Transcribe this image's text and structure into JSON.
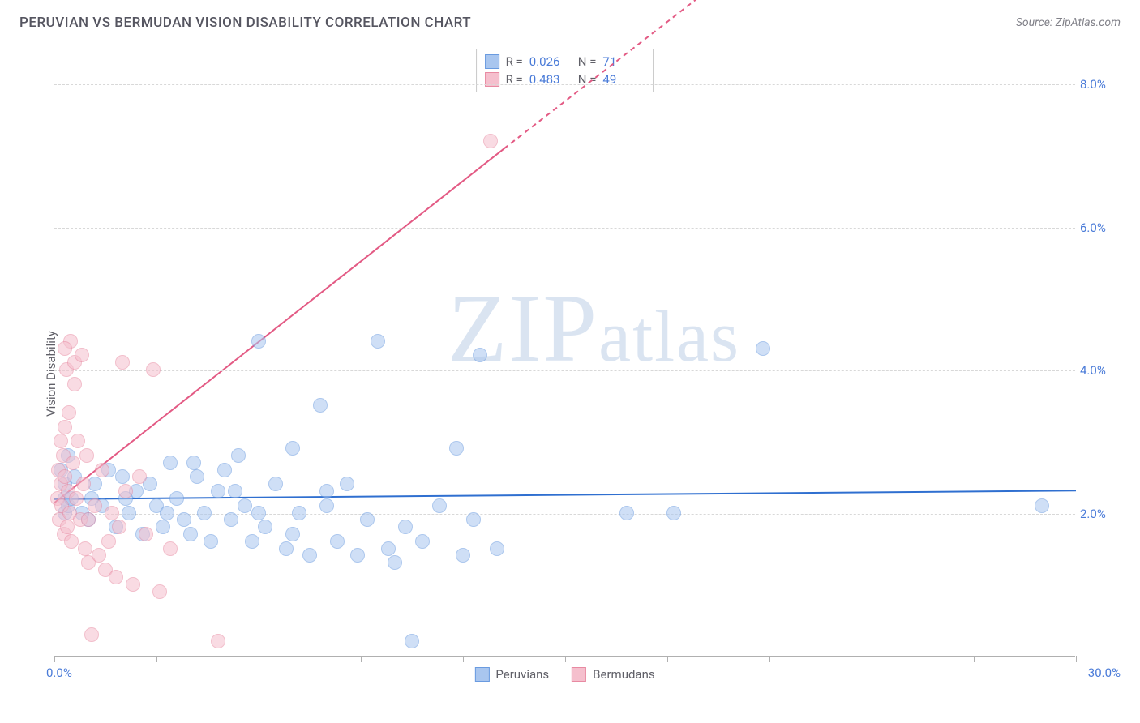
{
  "header": {
    "title": "PERUVIAN VS BERMUDAN VISION DISABILITY CORRELATION CHART",
    "source_prefix": "Source: ",
    "source_name": "ZipAtlas.com"
  },
  "watermark_text": "ZIPatlas",
  "chart": {
    "type": "scatter",
    "y_axis_label": "Vision Disability",
    "background_color": "#ffffff",
    "grid_color": "#d8d8d8",
    "axis_color": "#b0b0b0",
    "tick_label_color": "#4a7bd8",
    "xlim": [
      0,
      30
    ],
    "ylim": [
      0,
      8.5
    ],
    "x_tick_positions": [
      0,
      3,
      6,
      9,
      12,
      15,
      18,
      21,
      24,
      27,
      30
    ],
    "x_min_label": "0.0%",
    "x_max_label": "30.0%",
    "y_gridlines": [
      2.0,
      4.0,
      6.0,
      8.0
    ],
    "y_tick_labels": [
      "2.0%",
      "4.0%",
      "6.0%",
      "8.0%"
    ],
    "point_radius": 9,
    "point_opacity": 0.55,
    "series": [
      {
        "name": "Peruvians",
        "fill_color": "#a9c6ef",
        "stroke_color": "#6a9be0",
        "trend": {
          "x1": 0,
          "y1": 2.2,
          "x2": 30,
          "y2": 2.32,
          "dash": false,
          "color": "#2f6fd0",
          "width": 2
        },
        "R": "0.026",
        "N": "71",
        "points": [
          [
            0.2,
            2.6
          ],
          [
            0.3,
            2.4
          ],
          [
            0.3,
            2.2
          ],
          [
            0.3,
            2.0
          ],
          [
            0.4,
            2.8
          ],
          [
            0.4,
            2.1
          ],
          [
            1.0,
            1.9
          ],
          [
            1.2,
            2.4
          ],
          [
            1.4,
            2.1
          ],
          [
            1.6,
            2.6
          ],
          [
            1.8,
            1.8
          ],
          [
            2.0,
            2.5
          ],
          [
            2.2,
            2.0
          ],
          [
            2.4,
            2.3
          ],
          [
            2.6,
            1.7
          ],
          [
            2.8,
            2.4
          ],
          [
            3.0,
            2.1
          ],
          [
            3.2,
            1.8
          ],
          [
            3.4,
            2.7
          ],
          [
            3.6,
            2.2
          ],
          [
            3.8,
            1.9
          ],
          [
            4.0,
            1.7
          ],
          [
            4.2,
            2.5
          ],
          [
            4.4,
            2.0
          ],
          [
            4.6,
            1.6
          ],
          [
            4.8,
            2.3
          ],
          [
            5.0,
            2.6
          ],
          [
            5.2,
            1.9
          ],
          [
            5.4,
            2.8
          ],
          [
            5.6,
            2.1
          ],
          [
            5.8,
            1.6
          ],
          [
            6.0,
            4.4
          ],
          [
            6.2,
            1.8
          ],
          [
            6.5,
            2.4
          ],
          [
            6.8,
            1.5
          ],
          [
            7.0,
            2.9
          ],
          [
            7.2,
            2.0
          ],
          [
            7.5,
            1.4
          ],
          [
            7.8,
            3.5
          ],
          [
            8.0,
            2.1
          ],
          [
            8.3,
            1.6
          ],
          [
            8.6,
            2.4
          ],
          [
            8.9,
            1.4
          ],
          [
            9.2,
            1.9
          ],
          [
            9.5,
            4.4
          ],
          [
            9.8,
            1.5
          ],
          [
            10.0,
            1.3
          ],
          [
            10.3,
            1.8
          ],
          [
            10.5,
            0.2
          ],
          [
            10.8,
            1.6
          ],
          [
            11.3,
            2.1
          ],
          [
            11.8,
            2.9
          ],
          [
            12.0,
            1.4
          ],
          [
            12.3,
            1.9
          ],
          [
            12.5,
            4.2
          ],
          [
            13.0,
            1.5
          ],
          [
            16.8,
            2.0
          ],
          [
            18.2,
            2.0
          ],
          [
            20.8,
            4.3
          ],
          [
            29.0,
            2.1
          ],
          [
            0.5,
            2.2
          ],
          [
            1.1,
            2.2
          ],
          [
            0.6,
            2.5
          ],
          [
            0.8,
            2.0
          ],
          [
            2.1,
            2.2
          ],
          [
            3.3,
            2.0
          ],
          [
            4.1,
            2.7
          ],
          [
            5.3,
            2.3
          ],
          [
            6.0,
            2.0
          ],
          [
            7.0,
            1.7
          ],
          [
            8.0,
            2.3
          ]
        ]
      },
      {
        "name": "Bermudans",
        "fill_color": "#f5bfcd",
        "stroke_color": "#e88aa2",
        "trend": {
          "x1": 0,
          "y1": 2.15,
          "x2": 13.2,
          "y2": 7.1,
          "dash_from_x": 13.2,
          "dash_to_x": 20.5,
          "dash_to_y": 9.8,
          "color": "#e35a84",
          "width": 2
        },
        "R": "0.483",
        "N": "49",
        "points": [
          [
            0.1,
            2.2
          ],
          [
            0.12,
            2.6
          ],
          [
            0.15,
            1.9
          ],
          [
            0.18,
            2.4
          ],
          [
            0.2,
            3.0
          ],
          [
            0.22,
            2.1
          ],
          [
            0.25,
            2.8
          ],
          [
            0.28,
            1.7
          ],
          [
            0.3,
            2.5
          ],
          [
            0.32,
            3.2
          ],
          [
            0.35,
            4.0
          ],
          [
            0.38,
            1.8
          ],
          [
            0.4,
            2.3
          ],
          [
            0.42,
            3.4
          ],
          [
            0.45,
            2.0
          ],
          [
            0.48,
            4.4
          ],
          [
            0.5,
            1.6
          ],
          [
            0.55,
            2.7
          ],
          [
            0.6,
            4.1
          ],
          [
            0.65,
            2.2
          ],
          [
            0.7,
            3.0
          ],
          [
            0.75,
            1.9
          ],
          [
            0.8,
            4.2
          ],
          [
            0.85,
            2.4
          ],
          [
            0.9,
            1.5
          ],
          [
            0.95,
            2.8
          ],
          [
            1.0,
            1.3
          ],
          [
            1.1,
            0.3
          ],
          [
            1.2,
            2.1
          ],
          [
            1.3,
            1.4
          ],
          [
            1.4,
            2.6
          ],
          [
            1.5,
            1.2
          ],
          [
            1.6,
            1.6
          ],
          [
            1.7,
            2.0
          ],
          [
            1.8,
            1.1
          ],
          [
            1.9,
            1.8
          ],
          [
            2.0,
            4.1
          ],
          [
            2.1,
            2.3
          ],
          [
            2.3,
            1.0
          ],
          [
            2.5,
            2.5
          ],
          [
            2.7,
            1.7
          ],
          [
            2.9,
            4.0
          ],
          [
            3.1,
            0.9
          ],
          [
            3.4,
            1.5
          ],
          [
            4.8,
            0.2
          ],
          [
            12.8,
            7.2
          ],
          [
            0.3,
            4.3
          ],
          [
            0.6,
            3.8
          ],
          [
            1.0,
            1.9
          ]
        ]
      }
    ]
  },
  "rn_legend": {
    "R_label": "R =",
    "N_label": "N ="
  },
  "series_legend": {
    "items": [
      "Peruvians",
      "Bermudans"
    ]
  }
}
